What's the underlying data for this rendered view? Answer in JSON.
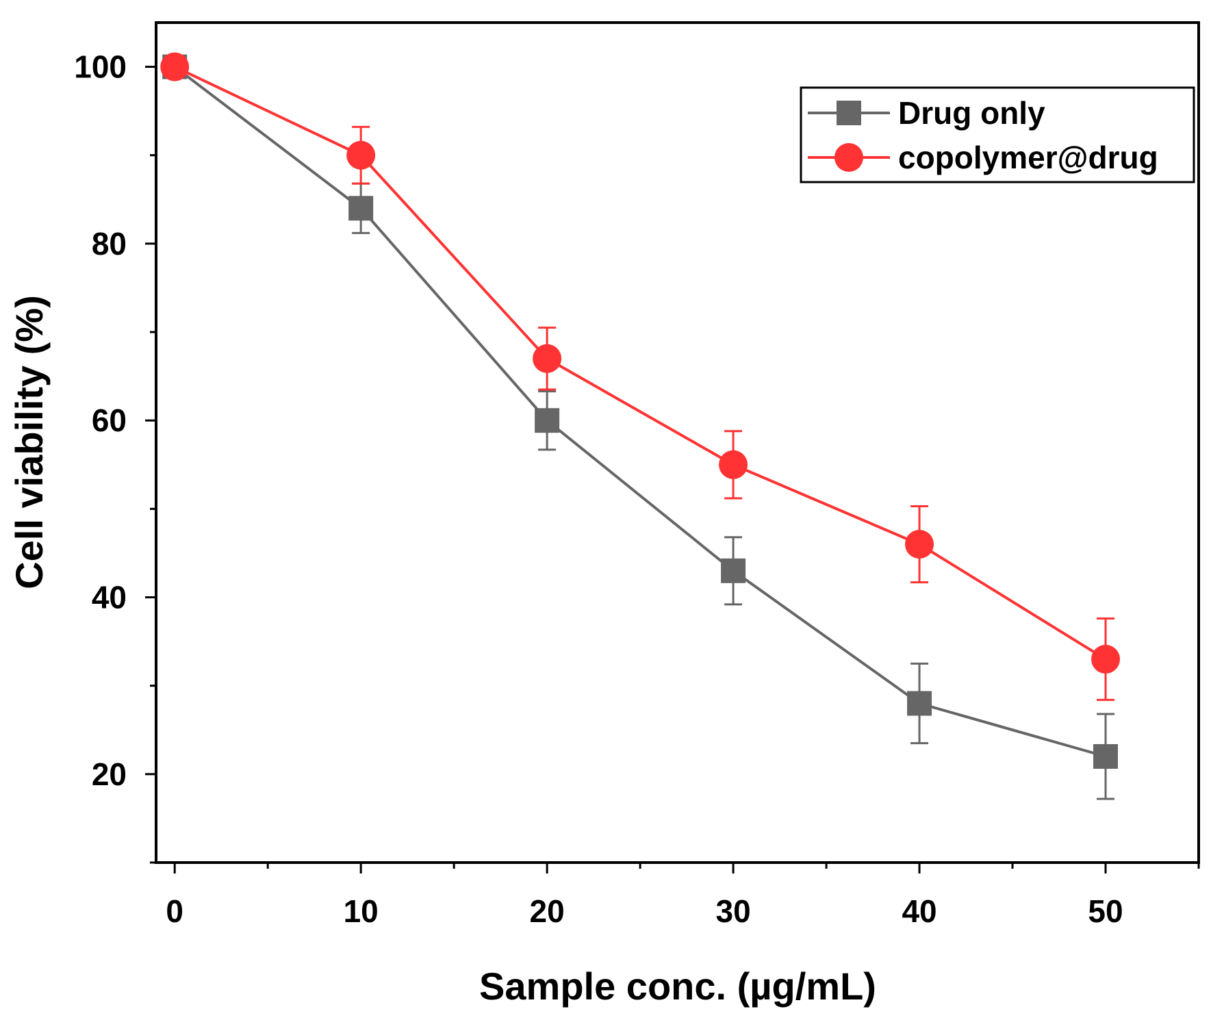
{
  "chart_data": {
    "type": "line",
    "title": "",
    "xlabel": "Sample conc. (µg/mL)",
    "ylabel": "Cell viability (%)",
    "xlim": [
      -1,
      55
    ],
    "ylim": [
      10,
      105
    ],
    "xticks": [
      0,
      10,
      20,
      30,
      40,
      50
    ],
    "yticks": [
      20,
      40,
      60,
      80,
      100
    ],
    "x_minor_step": 5,
    "y_minor_step": 10,
    "legend_position": "top-right",
    "x": [
      0,
      10,
      20,
      30,
      40,
      50
    ],
    "series": [
      {
        "name": "Drug only",
        "marker": "square",
        "color": "#666666",
        "values": [
          100,
          84,
          60,
          43,
          28,
          22
        ],
        "errors": [
          0,
          2.8,
          3.3,
          3.8,
          4.5,
          4.8
        ]
      },
      {
        "name": "copolymer@drug",
        "marker": "circle",
        "color": "#ff3333",
        "values": [
          100,
          90,
          67,
          55,
          46,
          33
        ],
        "errors": [
          0,
          3.2,
          3.5,
          3.8,
          4.3,
          4.6
        ]
      }
    ]
  }
}
